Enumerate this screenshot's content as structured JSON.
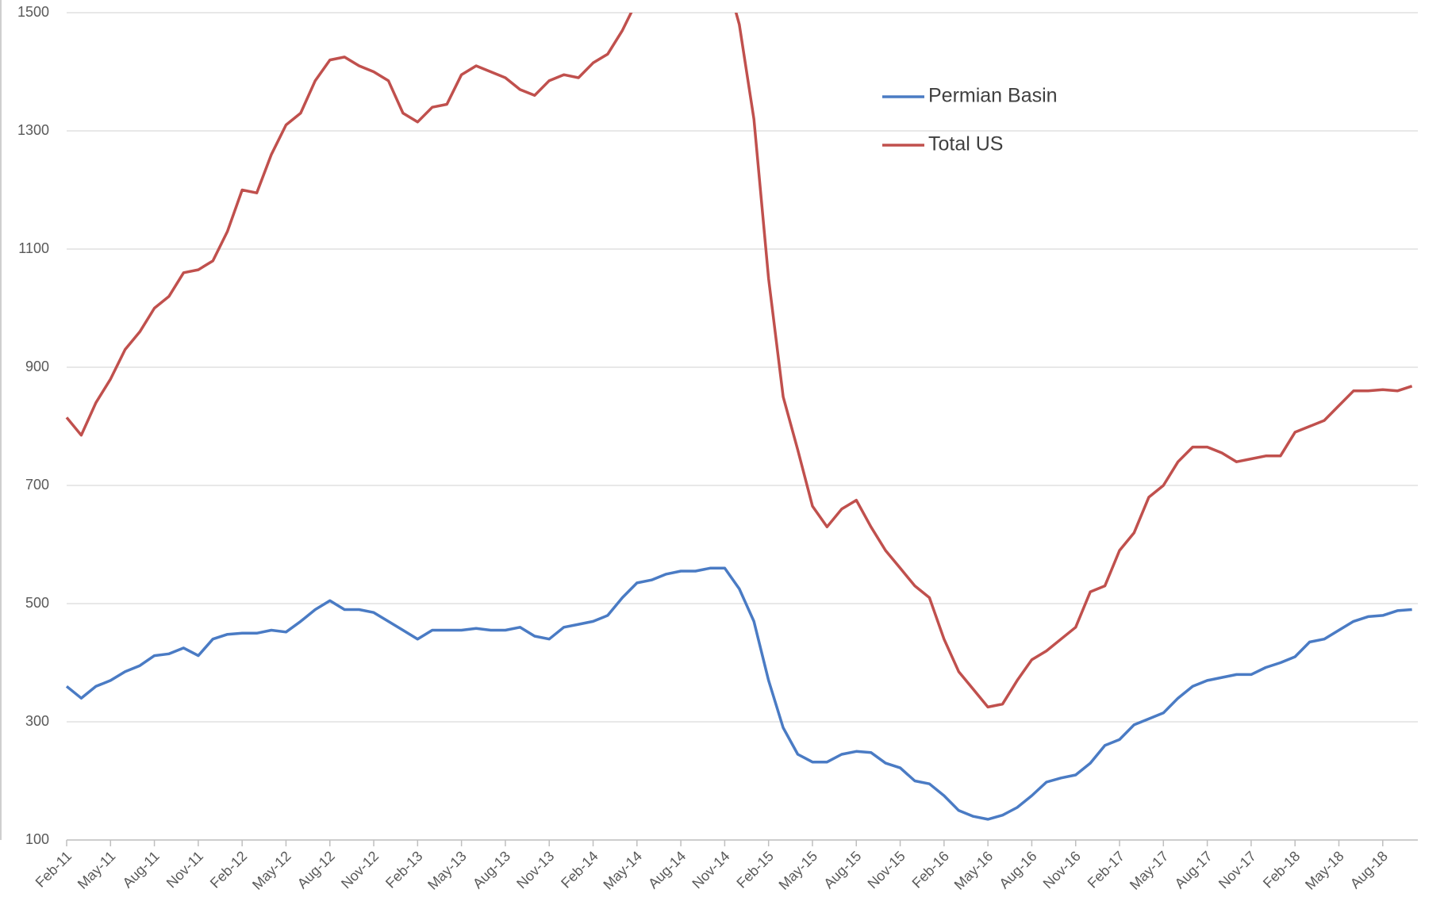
{
  "chart_data": {
    "type": "line",
    "categories": [
      "Feb-11",
      null,
      null,
      "May-11",
      null,
      null,
      "Aug-11",
      null,
      null,
      "Nov-11",
      null,
      null,
      "Feb-12",
      null,
      null,
      "May-12",
      null,
      null,
      "Aug-12",
      null,
      null,
      "Nov-12",
      null,
      null,
      "Feb-13",
      null,
      null,
      "May-13",
      null,
      null,
      "Aug-13",
      null,
      null,
      "Nov-13",
      null,
      null,
      "Feb-14",
      null,
      null,
      "May-14",
      null,
      null,
      "Aug-14",
      null,
      null,
      "Nov-14",
      null,
      null,
      "Feb-15",
      null,
      null,
      "May-15",
      null,
      null,
      "Aug-15",
      null,
      null,
      "Nov-15",
      null,
      null,
      "Feb-16",
      null,
      null,
      "May-16",
      null,
      null,
      "Aug-16",
      null,
      null,
      "Nov-16",
      null,
      null,
      "Feb-17",
      null,
      null,
      "May-17",
      null,
      null,
      "Aug-17",
      null,
      null,
      "Nov-17",
      null,
      null,
      "Feb-18",
      null,
      null,
      "May-18",
      null,
      null,
      "Aug-18",
      null,
      null
    ],
    "series": [
      {
        "name": "Permian Basin",
        "color": "#4a7bc4",
        "values": [
          360,
          340,
          360,
          370,
          385,
          395,
          412,
          415,
          425,
          412,
          440,
          448,
          450,
          450,
          455,
          452,
          470,
          490,
          505,
          490,
          490,
          485,
          470,
          455,
          440,
          455,
          455,
          455,
          458,
          455,
          455,
          460,
          445,
          440,
          460,
          465,
          470,
          480,
          510,
          535,
          540,
          550,
          555,
          555,
          560,
          560,
          525,
          470,
          370,
          290,
          245,
          232,
          232,
          245,
          250,
          248,
          230,
          222,
          200,
          195,
          175,
          150,
          140,
          135,
          142,
          155,
          175,
          198,
          205,
          210,
          230,
          260,
          270,
          295,
          305,
          315,
          340,
          360,
          370,
          375,
          380,
          380,
          392,
          400,
          410,
          435,
          440,
          455,
          470,
          478,
          480,
          488,
          490
        ]
      },
      {
        "name": "Total US",
        "color": "#c0504d",
        "values": [
          815,
          785,
          840,
          880,
          930,
          960,
          1000,
          1020,
          1060,
          1065,
          1080,
          1130,
          1200,
          1195,
          1260,
          1310,
          1330,
          1385,
          1420,
          1425,
          1410,
          1400,
          1385,
          1330,
          1315,
          1340,
          1345,
          1395,
          1410,
          1400,
          1390,
          1370,
          1360,
          1385,
          1395,
          1390,
          1415,
          1430,
          1470,
          1520,
          1550,
          1570,
          1590,
          1595,
          1610,
          1570,
          1480,
          1320,
          1050,
          850,
          760,
          665,
          630,
          660,
          675,
          630,
          590,
          560,
          530,
          510,
          440,
          385,
          355,
          325,
          330,
          370,
          405,
          420,
          440,
          460,
          520,
          530,
          590,
          620,
          680,
          700,
          740,
          765,
          765,
          755,
          740,
          745,
          750,
          750,
          790,
          800,
          810,
          835,
          860,
          860,
          862,
          860,
          868
        ]
      }
    ],
    "ylim": [
      100,
      1500
    ],
    "yticks": [
      100,
      300,
      500,
      700,
      900,
      1100,
      1300,
      1500
    ],
    "grid": true,
    "legend": "upper center"
  }
}
